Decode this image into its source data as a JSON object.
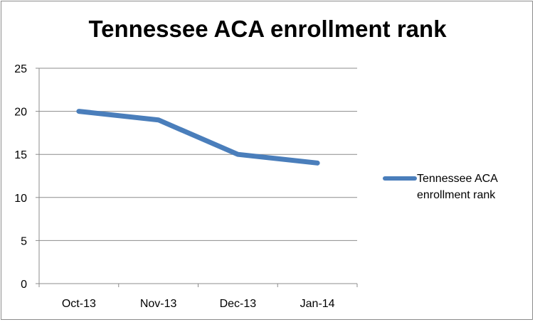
{
  "chart_data": {
    "type": "line",
    "title": "Tennessee ACA enrollment rank",
    "categories": [
      "Oct-13",
      "Nov-13",
      "Dec-13",
      "Jan-14"
    ],
    "series": [
      {
        "name": "Tennessee ACA enrollment rank",
        "values": [
          20,
          19,
          15,
          14
        ],
        "color": "#4a7ebb"
      }
    ],
    "xlabel": "",
    "ylabel": "",
    "ylim": [
      0,
      25
    ],
    "yticks": [
      0,
      5,
      10,
      15,
      20,
      25
    ],
    "grid": true,
    "legend": "right"
  }
}
